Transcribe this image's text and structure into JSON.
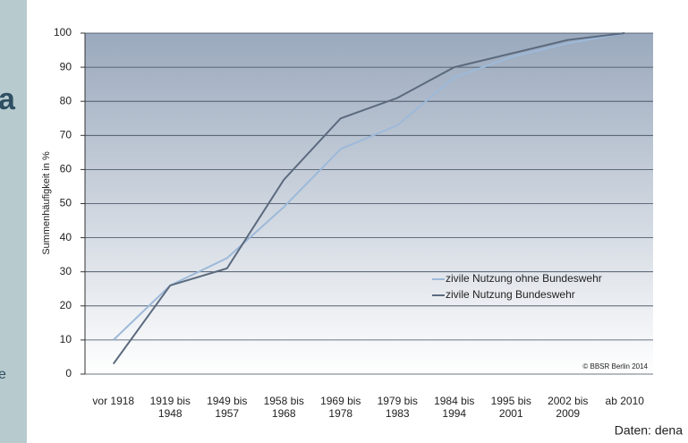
{
  "fragments": [
    "a",
    "e"
  ],
  "chart_data": {
    "type": "line",
    "y_label": "Summenhäufigkeit in %",
    "categories": [
      "vor 1918",
      "1919 bis\n1948",
      "1949 bis\n1957",
      "1958 bis\n1968",
      "1969 bis\n1978",
      "1979 bis\n1983",
      "1984 bis\n1994",
      "1995 bis\n2001",
      "2002 bis\n2009",
      "ab 2010"
    ],
    "series": [
      {
        "name": "zivile Nutzung ohne Bundeswehr",
        "color": "#9db9d9",
        "values": [
          10,
          26,
          34,
          49,
          66,
          73,
          87,
          93,
          97,
          100
        ]
      },
      {
        "name": "zivile Nutzung Bundeswehr",
        "color": "#5b6a7e",
        "values": [
          3,
          26,
          31,
          57,
          75,
          81,
          90,
          94,
          98,
          100
        ]
      }
    ],
    "ylim": [
      0,
      100
    ],
    "yticks": [
      0,
      10,
      20,
      30,
      40,
      50,
      60,
      70,
      80,
      90,
      100
    ],
    "grid": true,
    "copyright": "© BBSR Berlin 2014",
    "source": "Daten: dena"
  }
}
